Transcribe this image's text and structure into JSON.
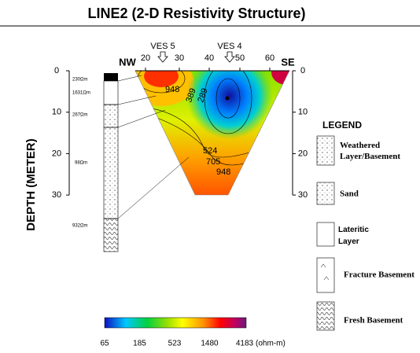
{
  "title": "LINE2 (2-D Resistivity Structure)",
  "section": {
    "ves": [
      "VES 5",
      "VES 4"
    ],
    "ends": [
      "NW",
      "SE"
    ],
    "top_ticks": [
      "20",
      "30",
      "40",
      "50",
      "60"
    ],
    "depth_ticks": [
      "0",
      "10",
      "20",
      "30"
    ],
    "contours": [
      "948",
      "389",
      "289",
      "524",
      "705",
      "948"
    ]
  },
  "axis_title": "DEPTH (METER)",
  "borehole": {
    "labels": [
      "230Ωm",
      "1631Ωm",
      "267Ωm",
      "98Ωm",
      "932Ωm"
    ]
  },
  "legend": {
    "title": "LEGEND",
    "items": [
      "Weathered Layer/Basement",
      "Sand",
      "Lateritic Layer",
      "Fracture Basement",
      "Fresh Basement"
    ]
  },
  "colorbar": {
    "ticks": [
      "65",
      "185",
      "523",
      "1480",
      "4183"
    ],
    "unit": "(ohm-m)"
  }
}
